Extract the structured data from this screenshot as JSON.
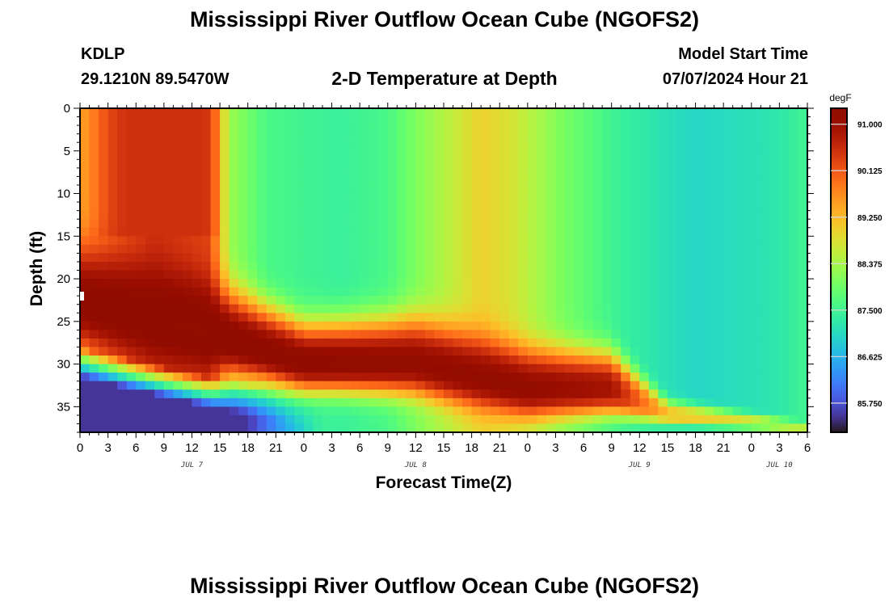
{
  "header": {
    "title": "Mississippi River Outflow Ocean Cube (NGOFS2)",
    "station": "KDLP",
    "coordinates": "29.1210N  89.5470W",
    "subtitle": "2-D Temperature at Depth",
    "model_start_label": "Model Start Time",
    "model_start_value": "07/07/2024 Hour 21"
  },
  "footer": {
    "title": "Mississippi River Outflow Ocean Cube (NGOFS2)"
  },
  "chart_data": {
    "type": "heatmap",
    "title": "2-D Temperature at Depth",
    "xlabel": "Forecast Time(Z)",
    "ylabel": "Depth (ft)",
    "colorbar_unit": "degF",
    "xlim": [
      0,
      78
    ],
    "ylim": [
      38,
      0
    ],
    "y_inverted": true,
    "x_ticks": [
      0,
      3,
      6,
      9,
      12,
      15,
      18,
      21,
      24,
      27,
      30,
      33,
      36,
      39,
      42,
      45,
      48,
      51,
      54,
      57,
      60,
      63,
      66,
      69,
      72,
      75,
      78
    ],
    "x_tick_labels": [
      "0",
      "3",
      "6",
      "9",
      "12",
      "15",
      "18",
      "21",
      "0",
      "3",
      "6",
      "9",
      "12",
      "15",
      "18",
      "21",
      "0",
      "3",
      "6",
      "9",
      "12",
      "15",
      "18",
      "21",
      "0",
      "3",
      "6"
    ],
    "y_ticks": [
      0,
      5,
      10,
      15,
      20,
      25,
      30,
      35
    ],
    "date_labels": [
      {
        "text": "JUL 7",
        "x": 12
      },
      {
        "text": "JUL 8",
        "x": 36
      },
      {
        "text": "JUL 9",
        "x": 60
      },
      {
        "text": "JUL 10",
        "x": 75
      }
    ],
    "colorbar": {
      "min": 85.2,
      "max": 91.3,
      "ticks": [
        91.0,
        90.125,
        89.25,
        88.375,
        87.5,
        86.625,
        85.75
      ],
      "tick_labels": [
        "91.000",
        "90.125",
        "89.250",
        "88.375",
        "87.500",
        "86.625",
        "85.750"
      ],
      "colormap": "turbo"
    },
    "features": {
      "surface_warm_layer": {
        "x_range": [
          0,
          15
        ],
        "depth_range": [
          0,
          15
        ],
        "value": 90.5
      },
      "warm_core": [
        {
          "x": 0,
          "center_depth": 23,
          "half_thickness": 6,
          "peak": 91.2
        },
        {
          "x": 12,
          "center_depth": 26,
          "half_thickness": 6,
          "peak": 91.3
        },
        {
          "x": 24,
          "center_depth": 30,
          "half_thickness": 4.5,
          "peak": 91.2
        },
        {
          "x": 36,
          "center_depth": 30,
          "half_thickness": 5,
          "peak": 91.1
        },
        {
          "x": 48,
          "center_depth": 33,
          "half_thickness": 4.5,
          "peak": 91.1
        },
        {
          "x": 57,
          "center_depth": 33,
          "half_thickness": 4,
          "peak": 90.9
        },
        {
          "x": 63,
          "center_depth": 36,
          "half_thickness": 1.5,
          "peak": 89.2
        },
        {
          "x": 78,
          "center_depth": 37.5,
          "half_thickness": 0.5,
          "peak": 88.5
        }
      ],
      "cool_surface_minimum": {
        "x_range": [
          60,
          78
        ],
        "depth_range": [
          0,
          25
        ],
        "value": 87.0
      },
      "cold_bottom": {
        "x_range": [
          0,
          18
        ],
        "depth_range": [
          34,
          38
        ],
        "value": 85.5
      }
    }
  }
}
